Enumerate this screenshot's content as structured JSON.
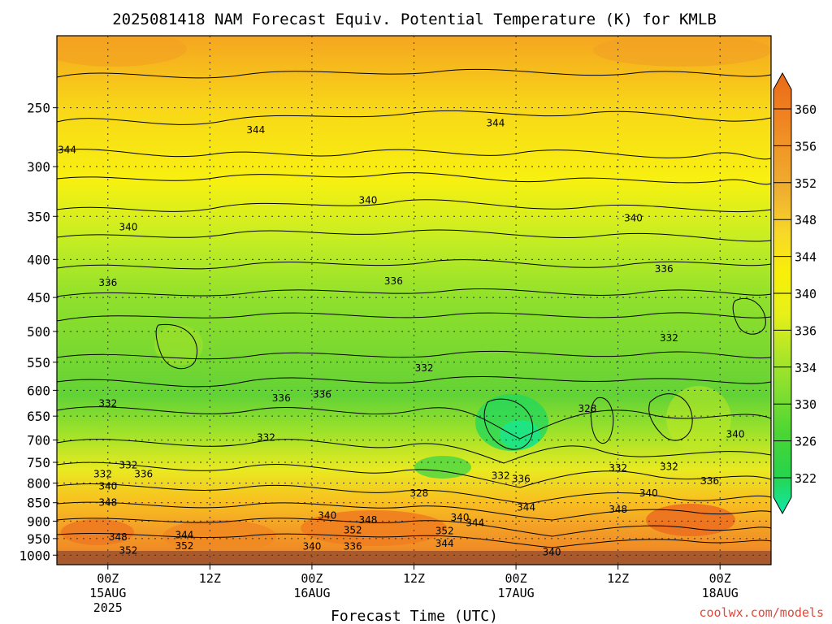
{
  "chart_data": {
    "type": "heatmap",
    "title": "2025081418 NAM Forecast Equiv. Potential Temperature (K) for KMLB",
    "xlabel": "Forecast Time (UTC)",
    "ylabel": "",
    "y_axis": {
      "scale": "log",
      "inverted": true,
      "range": [
        1030,
        200
      ],
      "ticks": [
        250,
        300,
        350,
        400,
        450,
        500,
        550,
        600,
        650,
        700,
        750,
        800,
        850,
        900,
        950,
        1000
      ],
      "tick_labels": [
        "250",
        "300",
        "350",
        "400",
        "450",
        "500",
        "550",
        "600",
        "650",
        "700",
        "750",
        "800",
        "850",
        "900",
        "950",
        "1000"
      ]
    },
    "x_axis": {
      "range_hours": [
        -5,
        65
      ],
      "ticks": [
        {
          "hour": 0,
          "lines": [
            "00Z",
            "15AUG",
            "2025"
          ]
        },
        {
          "hour": 10,
          "lines": [
            "12Z"
          ]
        },
        {
          "hour": 20,
          "lines": [
            "00Z",
            "16AUG"
          ]
        },
        {
          "hour": 30,
          "lines": [
            "12Z"
          ]
        },
        {
          "hour": 40,
          "lines": [
            "00Z",
            "17AUG"
          ]
        },
        {
          "hour": 50,
          "lines": [
            "12Z"
          ]
        },
        {
          "hour": 60,
          "lines": [
            "00Z",
            "18AUG"
          ]
        }
      ]
    },
    "grid": true,
    "colorbar": {
      "position": "right",
      "ticks": [
        322,
        326,
        330,
        334,
        336,
        340,
        344,
        348,
        352,
        356,
        360
      ],
      "labels": [
        "322",
        "326",
        "330",
        "334",
        "336",
        "340",
        "344",
        "348",
        "352",
        "356",
        "360"
      ],
      "colors": [
        "#10e8a8",
        "#28d44a",
        "#4ad634",
        "#80de30",
        "#b0e628",
        "#e8f018",
        "#f8f008",
        "#f8d828",
        "#f0b030",
        "#f09a28",
        "#f08020",
        "#e86a18"
      ]
    },
    "contour_labels": [
      {
        "value": "344",
        "t": -4.0,
        "p": 285
      },
      {
        "value": "344",
        "t": 14.5,
        "p": 268
      },
      {
        "value": "344",
        "t": 38.0,
        "p": 262
      },
      {
        "value": "340",
        "t": 2.0,
        "p": 362
      },
      {
        "value": "340",
        "t": 25.5,
        "p": 333
      },
      {
        "value": "340",
        "t": 51.5,
        "p": 352
      },
      {
        "value": "336",
        "t": 0.0,
        "p": 430
      },
      {
        "value": "336",
        "t": 28.0,
        "p": 428
      },
      {
        "value": "336",
        "t": 54.5,
        "p": 412
      },
      {
        "value": "332",
        "t": 0.0,
        "p": 625
      },
      {
        "value": "332",
        "t": 15.5,
        "p": 695
      },
      {
        "value": "332",
        "t": 31.0,
        "p": 560
      },
      {
        "value": "332",
        "t": 55.0,
        "p": 510
      },
      {
        "value": "336",
        "t": 17.0,
        "p": 615
      },
      {
        "value": "336",
        "t": 21.0,
        "p": 608
      },
      {
        "value": "328",
        "t": 47.0,
        "p": 635
      },
      {
        "value": "332",
        "t": 2.0,
        "p": 757
      },
      {
        "value": "336",
        "t": 3.5,
        "p": 778
      },
      {
        "value": "332",
        "t": -0.5,
        "p": 778
      },
      {
        "value": "340",
        "t": 0.0,
        "p": 808
      },
      {
        "value": "348",
        "t": 0.0,
        "p": 850
      },
      {
        "value": "348",
        "t": 1.0,
        "p": 945
      },
      {
        "value": "344",
        "t": 7.5,
        "p": 940
      },
      {
        "value": "352",
        "t": 2.0,
        "p": 985
      },
      {
        "value": "352",
        "t": 7.5,
        "p": 972
      },
      {
        "value": "340",
        "t": 21.5,
        "p": 885
      },
      {
        "value": "348",
        "t": 25.5,
        "p": 897
      },
      {
        "value": "352",
        "t": 24.0,
        "p": 925
      },
      {
        "value": "340",
        "t": 20.0,
        "p": 973
      },
      {
        "value": "336",
        "t": 24.0,
        "p": 973
      },
      {
        "value": "344",
        "t": 36.0,
        "p": 905
      },
      {
        "value": "352",
        "t": 33.0,
        "p": 928
      },
      {
        "value": "344",
        "t": 33.0,
        "p": 965
      },
      {
        "value": "340",
        "t": 34.5,
        "p": 890
      },
      {
        "value": "328",
        "t": 30.5,
        "p": 825
      },
      {
        "value": "332",
        "t": 38.5,
        "p": 782
      },
      {
        "value": "336",
        "t": 40.5,
        "p": 790
      },
      {
        "value": "344",
        "t": 41.0,
        "p": 862
      },
      {
        "value": "340",
        "t": 43.5,
        "p": 990
      },
      {
        "value": "348",
        "t": 50.0,
        "p": 868
      },
      {
        "value": "332",
        "t": 50.0,
        "p": 763
      },
      {
        "value": "332",
        "t": 55.0,
        "p": 760
      },
      {
        "value": "340",
        "t": 53.0,
        "p": 825
      },
      {
        "value": "336",
        "t": 59.0,
        "p": 795
      },
      {
        "value": "340",
        "t": 61.5,
        "p": 688
      }
    ]
  },
  "credit": "coolwx.com/models"
}
